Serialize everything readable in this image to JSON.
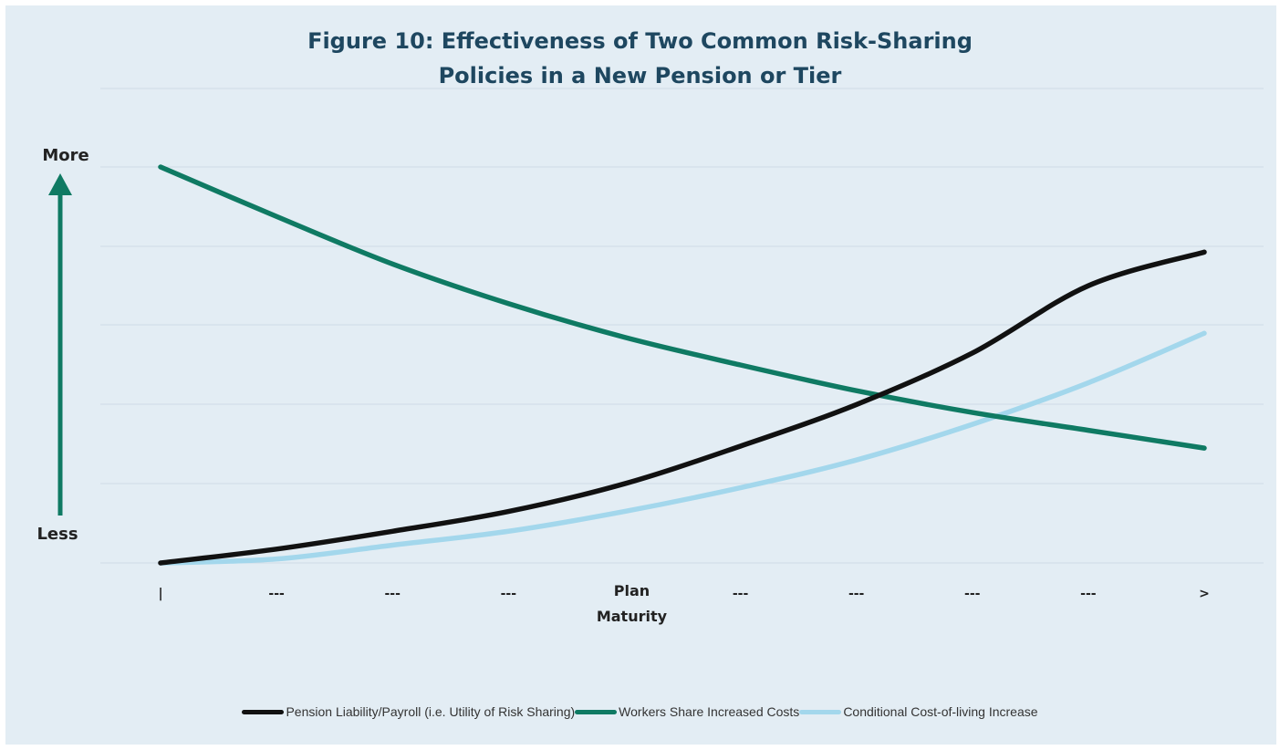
{
  "chart_data": {
    "type": "line",
    "title_lines": [
      "Figure 10: Effectiveness of Two Common Risk-Sharing",
      "Policies in a New Pension or Tier"
    ],
    "xlabel_lines": [
      "Plan",
      "Maturity"
    ],
    "y_top_label": "More",
    "y_bottom_label": "Less",
    "categories": [
      "|",
      "---",
      "---",
      "---",
      "",
      "---",
      "---",
      "---",
      "---",
      ">"
    ],
    "ylim": [
      0,
      10
    ],
    "grid": "horizontal",
    "legend_position": "bottom",
    "series": [
      {
        "name": "Pension Liability/Payroll (i.e. Utility of Risk Sharing)",
        "color": "#111111",
        "values": [
          0.0,
          0.35,
          0.8,
          1.3,
          2.0,
          2.95,
          4.0,
          5.3,
          7.0,
          7.85
        ]
      },
      {
        "name": "Workers Share Increased Costs",
        "color": "#0f7a63",
        "values": [
          10.0,
          8.75,
          7.55,
          6.55,
          5.7,
          5.0,
          4.35,
          3.8,
          3.35,
          2.9
        ]
      },
      {
        "name": "Conditional Cost-of-living Increase",
        "color": "#a3d7ec",
        "values": [
          0.0,
          0.1,
          0.45,
          0.8,
          1.3,
          1.9,
          2.6,
          3.5,
          4.55,
          5.8
        ]
      }
    ]
  },
  "arrow_color": "#0f7a63"
}
